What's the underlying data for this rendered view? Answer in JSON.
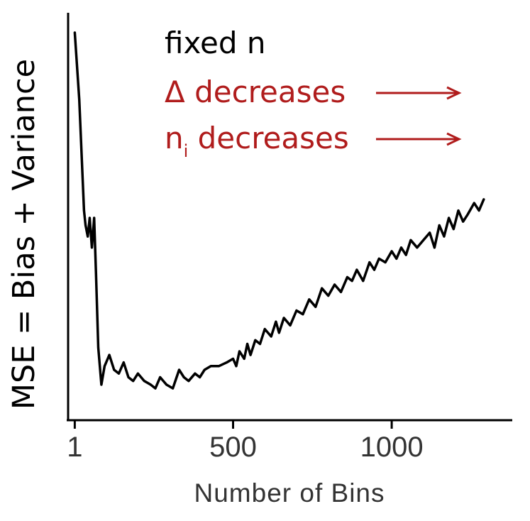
{
  "chart_data": {
    "type": "line",
    "title": "",
    "xlabel": "Number of Bins",
    "ylabel": "MSE = Bias + Variance",
    "xlim": [
      -20,
      1380
    ],
    "ylim": [
      0,
      1
    ],
    "x_ticks": [
      1,
      500,
      1000
    ],
    "x_tick_labels": [
      "1",
      "500",
      "1000"
    ],
    "y_ticks_shown": false,
    "grid": false,
    "series": [
      {
        "color": "#000000",
        "x": [
          1,
          15,
          30,
          35,
          42,
          48,
          55,
          62,
          68,
          75,
          85,
          95,
          110,
          125,
          140,
          155,
          170,
          185,
          200,
          220,
          240,
          255,
          270,
          290,
          310,
          330,
          345,
          360,
          380,
          395,
          410,
          430,
          455,
          480,
          500,
          510,
          520,
          535,
          545,
          555,
          570,
          585,
          600,
          620,
          635,
          645,
          660,
          680,
          700,
          720,
          740,
          760,
          780,
          800,
          820,
          840,
          860,
          875,
          890,
          910,
          930,
          945,
          960,
          980,
          1000,
          1015,
          1030,
          1045,
          1060,
          1080,
          1100,
          1120,
          1135,
          1150,
          1165,
          1180,
          1195,
          1210,
          1225,
          1240,
          1260,
          1275,
          1290
        ],
        "values": [
          1.0,
          0.82,
          0.52,
          0.48,
          0.45,
          0.5,
          0.42,
          0.5,
          0.35,
          0.15,
          0.05,
          0.1,
          0.13,
          0.09,
          0.08,
          0.11,
          0.07,
          0.06,
          0.08,
          0.06,
          0.05,
          0.04,
          0.07,
          0.05,
          0.04,
          0.09,
          0.07,
          0.06,
          0.08,
          0.07,
          0.09,
          0.1,
          0.1,
          0.11,
          0.12,
          0.1,
          0.14,
          0.12,
          0.16,
          0.13,
          0.17,
          0.16,
          0.2,
          0.18,
          0.22,
          0.19,
          0.23,
          0.21,
          0.25,
          0.24,
          0.28,
          0.26,
          0.31,
          0.29,
          0.32,
          0.3,
          0.34,
          0.33,
          0.36,
          0.33,
          0.38,
          0.36,
          0.39,
          0.38,
          0.41,
          0.39,
          0.42,
          0.4,
          0.44,
          0.42,
          0.44,
          0.46,
          0.42,
          0.48,
          0.45,
          0.5,
          0.47,
          0.52,
          0.49,
          0.51,
          0.54,
          0.52,
          0.55
        ]
      }
    ],
    "annotations": [
      {
        "text": "fixed n",
        "color": "#000000"
      },
      {
        "text": "Δ decreases",
        "color": "#b01c1c",
        "arrow": "→"
      },
      {
        "text": "n",
        "subscript": "i",
        "suffix": " decreases",
        "color": "#b01c1c",
        "arrow": "→"
      }
    ]
  }
}
